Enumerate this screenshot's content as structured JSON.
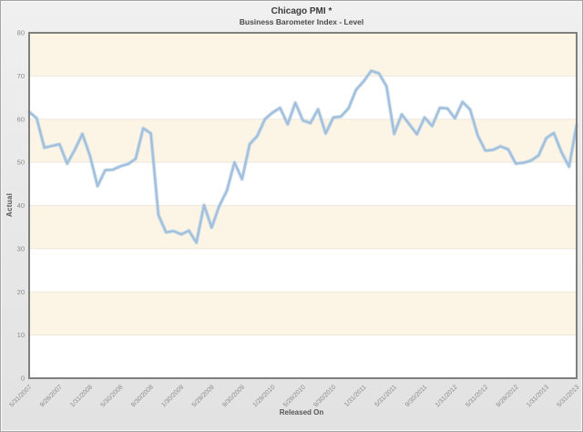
{
  "chart_data": {
    "type": "line",
    "title": "Chicago PMI *",
    "subtitle": "Business Barometer Index - Level",
    "xlabel": "Released On",
    "ylabel": "Actual",
    "ylim": [
      0,
      80
    ],
    "ytick_step": 10,
    "y_tick_labels": [
      "0",
      "10",
      "20",
      "30",
      "40",
      "50",
      "60",
      "70",
      "80"
    ],
    "grid": "horizontal-bands",
    "legend": "none",
    "frequency": "monthly",
    "x_tick_every_n_points": 4,
    "x_tick_labels": [
      "5/31/2007",
      "9/28/2007",
      "1/31/2008",
      "5/30/2008",
      "9/30/2008",
      "1/30/2009",
      "5/29/2009",
      "9/30/2009",
      "1/29/2010",
      "5/28/2010",
      "9/30/2010",
      "1/31/2011",
      "5/31/2011",
      "9/30/2011",
      "1/31/2012",
      "5/31/2012",
      "9/28/2012",
      "1/31/2013",
      "5/31/2013"
    ],
    "series": [
      {
        "name": "Actual",
        "values": [
          61.7,
          60.2,
          53.4,
          53.8,
          54.2,
          49.7,
          52.9,
          56.6,
          51.5,
          44.5,
          48.2,
          48.3,
          49.1,
          49.6,
          50.8,
          57.9,
          56.7,
          37.8,
          33.8,
          34.1,
          33.3,
          34.2,
          31.4,
          40.1,
          34.9,
          39.9,
          43.4,
          50.0,
          46.1,
          54.2,
          56.1,
          60.0,
          61.5,
          62.6,
          58.8,
          63.8,
          59.7,
          59.1,
          62.3,
          56.7,
          60.4,
          60.6,
          62.5,
          66.8,
          68.8,
          71.2,
          70.6,
          67.6,
          56.6,
          61.1,
          58.8,
          56.5,
          60.4,
          58.4,
          62.6,
          62.5,
          60.2,
          64.0,
          62.2,
          56.2,
          52.7,
          52.9,
          53.7,
          53.0,
          49.7,
          49.9,
          50.4,
          51.6,
          55.6,
          56.8,
          52.4,
          49.0,
          58.7
        ]
      }
    ],
    "colors": {
      "line": "#a3c1dc",
      "line_halo": "#c5d9ea",
      "band_cream": "#fcf5e6",
      "band_white": "#ffffff",
      "plot_border": "#7f7f7f",
      "tick_text": "#8a8a8a",
      "outer_background": "#e9e9e9"
    }
  }
}
